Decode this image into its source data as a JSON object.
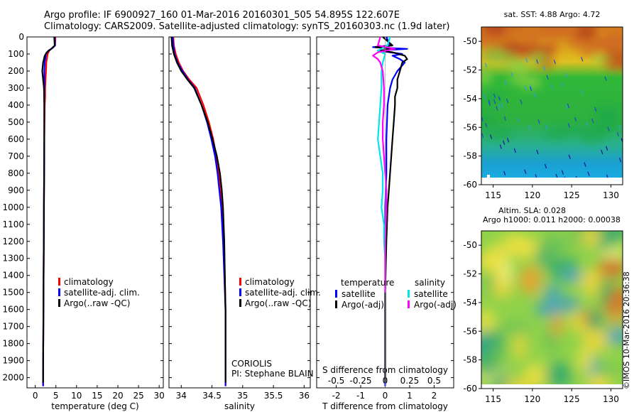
{
  "header": {
    "line1": "Argo profile: IF 6900927_160 01-Mar-2016 20160301_505 54.895S 122.607E",
    "line2": "Climatology: CARS2009. Satellite-adjusted climatology: synTS_20160303.nc (1.9d later)"
  },
  "credit": "©IMOS 10-Mar-2016 20:36:38",
  "colors": {
    "climatology": "#ff0000",
    "satellite": "#0000ff",
    "argo": "#000000",
    "salinity_satellite": "#00e5e5",
    "salinity_argo": "#ff00ff"
  },
  "chart_data": [
    {
      "id": "temperature",
      "type": "line",
      "xlabel": "temperature (deg C)",
      "xlim": [
        -2,
        31
      ],
      "xticks": [
        0,
        5,
        10,
        15,
        20,
        25,
        30
      ],
      "ylim": [
        2060,
        0
      ],
      "yticks": [
        0,
        100,
        200,
        300,
        400,
        500,
        600,
        700,
        800,
        900,
        1000,
        1100,
        1200,
        1300,
        1400,
        1500,
        1600,
        1700,
        1800,
        1900,
        2000
      ],
      "legend": [
        "climatology",
        "satellite-adj. clim.",
        "Argo(..raw -QC)"
      ],
      "series": [
        {
          "name": "climatology",
          "color": "#ff0000",
          "depth": [
            0,
            50,
            80,
            100,
            150,
            200,
            250,
            300,
            350,
            400,
            600,
            1000,
            1500,
            2000,
            2050
          ],
          "values": [
            4.9,
            4.8,
            3.4,
            3.0,
            2.7,
            2.6,
            2.5,
            2.4,
            2.4,
            2.3,
            2.2,
            2.1,
            2.0,
            1.9,
            1.9
          ]
        },
        {
          "name": "satellite-adj. clim.",
          "color": "#0000ff",
          "depth": [
            0,
            50,
            65,
            80,
            100,
            150,
            200,
            300,
            400,
            600,
            1000,
            1500,
            2000,
            2050
          ],
          "values": [
            4.7,
            4.8,
            4.2,
            3.2,
            2.6,
            2.3,
            2.2,
            2.2,
            2.2,
            2.2,
            2.1,
            2.0,
            1.9,
            1.9
          ]
        },
        {
          "name": "Argo(..raw -QC)",
          "color": "#000000",
          "depth": [
            0,
            50,
            70,
            90,
            110,
            150,
            200,
            250,
            300,
            400,
            600,
            1000,
            1500,
            2000,
            2030
          ],
          "values": [
            4.6,
            4.7,
            3.9,
            2.8,
            2.3,
            1.9,
            1.7,
            1.9,
            2.1,
            2.2,
            2.2,
            2.1,
            2.0,
            1.9,
            1.9
          ]
        }
      ]
    },
    {
      "id": "salinity",
      "type": "line",
      "xlabel": "salinity",
      "xlim": [
        33.8,
        36.1
      ],
      "xticks": [
        34,
        34.5,
        35,
        35.5,
        36
      ],
      "ylim": [
        2060,
        0
      ],
      "legend": [
        "climatology",
        "satellite-adj. clim.",
        "Argo(..raw -QC)"
      ],
      "annotation": [
        "CORIOLIS",
        "PI: Stephane BLAIN"
      ],
      "series": [
        {
          "name": "climatology",
          "color": "#ff0000",
          "depth": [
            0,
            50,
            100,
            150,
            200,
            250,
            300,
            400,
            500,
            600,
            700,
            800,
            900,
            1000,
            1200,
            1400,
            1600,
            1800,
            2000,
            2050
          ],
          "values": [
            33.87,
            33.88,
            33.91,
            33.96,
            34.03,
            34.13,
            34.25,
            34.36,
            34.45,
            34.52,
            34.57,
            34.61,
            34.64,
            34.66,
            34.69,
            34.71,
            34.72,
            34.72,
            34.72,
            34.72
          ]
        },
        {
          "name": "satellite-adj. clim.",
          "color": "#0000ff",
          "depth": [
            0,
            50,
            100,
            150,
            200,
            250,
            300,
            400,
            500,
            600,
            700,
            800,
            900,
            1000,
            1200,
            1400,
            1600,
            1800,
            2000,
            2050
          ],
          "values": [
            33.86,
            33.87,
            33.89,
            33.94,
            34.02,
            34.11,
            34.22,
            34.33,
            34.42,
            34.49,
            34.55,
            34.59,
            34.62,
            34.65,
            34.68,
            34.7,
            34.72,
            34.72,
            34.72,
            34.72
          ]
        },
        {
          "name": "Argo(..raw -QC)",
          "color": "#000000",
          "depth": [
            0,
            50,
            100,
            150,
            200,
            250,
            300,
            400,
            500,
            600,
            700,
            800,
            900,
            1000,
            1200,
            1400,
            1600,
            1800,
            2000,
            2030
          ],
          "values": [
            33.84,
            33.85,
            33.88,
            33.93,
            34.0,
            34.1,
            34.21,
            34.33,
            34.43,
            34.51,
            34.58,
            34.63,
            34.66,
            34.68,
            34.7,
            34.71,
            34.72,
            34.72,
            34.72,
            34.72
          ]
        }
      ]
    },
    {
      "id": "difference",
      "type": "line",
      "xlabel": "T difference from climatology",
      "xlabel_top": "S difference from climatology",
      "xlim": [
        -2.8,
        2.8
      ],
      "xticks_T": [
        -2,
        -1,
        0,
        1,
        2
      ],
      "xticks_S_labels": [
        "-0.5",
        "-0.25",
        "0",
        "0.25",
        "0.5"
      ],
      "xticks_S_pos": [
        -2,
        -1,
        0,
        1,
        2
      ],
      "ylim": [
        2060,
        0
      ],
      "legend_titles": [
        "temperature",
        "salinity"
      ],
      "legend": [
        "satellite",
        "Argo(-adj)",
        "satellite",
        "Argo(-adj)"
      ],
      "series": [
        {
          "name": "temperature satellite",
          "color": "#0000ff",
          "depth": [
            0,
            50,
            60,
            70,
            80,
            90,
            100,
            110,
            130,
            150,
            200,
            250,
            300,
            400,
            600,
            800,
            1000,
            1200,
            1500,
            2000,
            2050
          ],
          "values": [
            0.05,
            0.2,
            -0.5,
            0.9,
            -0.3,
            0.2,
            0.7,
            0.3,
            0.6,
            0.8,
            0.5,
            0.3,
            0.2,
            0.1,
            0.05,
            0.05,
            0.0,
            0.0,
            0.0,
            0.0,
            0.0
          ]
        },
        {
          "name": "temperature Argo(-adj)",
          "color": "#000000",
          "depth": [
            0,
            50,
            60,
            70,
            80,
            90,
            110,
            130,
            150,
            200,
            250,
            300,
            350,
            400,
            500,
            600,
            700,
            800,
            900,
            1000,
            1200,
            1500,
            2000,
            2030
          ],
          "values": [
            -0.1,
            0.3,
            -0.4,
            0.4,
            -0.2,
            0.3,
            0.8,
            0.9,
            0.7,
            0.6,
            0.5,
            0.5,
            0.4,
            0.4,
            0.35,
            0.3,
            0.25,
            0.2,
            0.15,
            0.1,
            0.05,
            0.0,
            0.0,
            0.0
          ]
        },
        {
          "name": "salinity satellite",
          "color": "#00e5e5",
          "depth": [
            0,
            50,
            80,
            100,
            150,
            200,
            300,
            400,
            500,
            600,
            700,
            800,
            900,
            1000,
            1100,
            1200,
            1300
          ],
          "values": [
            0.2,
            0.1,
            -0.3,
            0.0,
            -0.1,
            -0.15,
            -0.15,
            -0.2,
            -0.25,
            -0.3,
            -0.2,
            -0.1,
            -0.1,
            -0.15,
            -0.05,
            -0.05,
            0.0
          ]
        },
        {
          "name": "salinity Argo(-adj)",
          "color": "#ff00ff",
          "depth": [
            0,
            50,
            70,
            90,
            110,
            130,
            150,
            200,
            300,
            400,
            500,
            600,
            700,
            800,
            900,
            1000,
            1200,
            1400,
            1500
          ],
          "values": [
            -0.2,
            -0.3,
            0.4,
            -0.3,
            -0.5,
            -0.3,
            -0.2,
            -0.1,
            -0.05,
            -0.05,
            -0.1,
            -0.1,
            -0.05,
            0.0,
            0.05,
            0.05,
            0.0,
            0.0,
            0.0
          ]
        }
      ]
    },
    {
      "id": "sst-map",
      "type": "heatmap",
      "title": "sat. SST: 4.88 Argo: 4.72",
      "xticks": [
        115,
        120,
        125,
        130
      ],
      "yticks": [
        -50,
        -52,
        -54,
        -56,
        -58,
        -60
      ],
      "xlim": [
        113.5,
        131.5
      ],
      "ylim": [
        -60,
        -49
      ]
    },
    {
      "id": "sla-map",
      "type": "heatmap",
      "title_lines": [
        "Altim. SLA: 0.028",
        "Argo h1000: 0.011 h2000: 0.00038"
      ],
      "xticks": [
        115,
        120,
        125,
        130
      ],
      "yticks": [
        -50,
        -52,
        -54,
        -56,
        -58,
        -60
      ],
      "xlim": [
        113.5,
        131.5
      ],
      "ylim": [
        -60,
        -49
      ]
    }
  ]
}
